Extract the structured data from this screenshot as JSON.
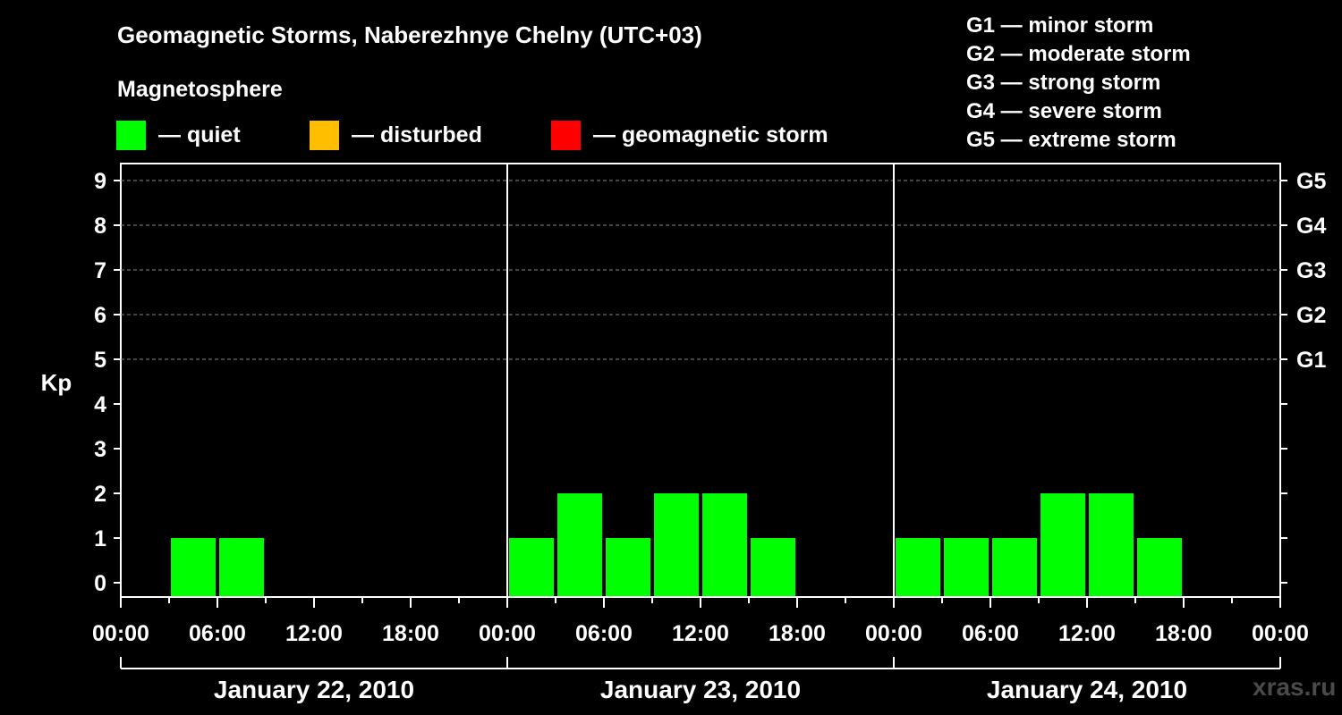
{
  "title": "Geomagnetic Storms, Naberezhnye Chelny (UTC+03)",
  "subtitle": "Magnetosphere",
  "legend": [
    {
      "label": "— quiet",
      "color": "#00ff00"
    },
    {
      "label": "— disturbed",
      "color": "#ffbf00"
    },
    {
      "label": "— geomagnetic storm",
      "color": "#ff0000"
    }
  ],
  "storm_scale": [
    "G1 — minor storm",
    "G2 — moderate storm",
    "G3 — strong storm",
    "G4 — severe storm",
    "G5 — extreme storm"
  ],
  "watermark": "xras.ru",
  "chart_data": {
    "type": "bar",
    "ylabel": "Kp",
    "ylim": [
      0,
      9
    ],
    "yticks": [
      "0",
      "1",
      "2",
      "3",
      "4",
      "5",
      "6",
      "7",
      "8",
      "9"
    ],
    "right_axis_labels": [
      {
        "kp": 5,
        "label": "G1"
      },
      {
        "kp": 6,
        "label": "G2"
      },
      {
        "kp": 7,
        "label": "G3"
      },
      {
        "kp": 8,
        "label": "G4"
      },
      {
        "kp": 9,
        "label": "G5"
      }
    ],
    "grid": "dashed horizontal at Kp 5-9",
    "bar_color": "#00ff00",
    "xtick_labels": [
      "00:00",
      "06:00",
      "12:00",
      "18:00",
      "00:00",
      "06:00",
      "12:00",
      "18:00",
      "00:00",
      "06:00",
      "12:00",
      "18:00",
      "00:00"
    ],
    "days": [
      {
        "label": "January 22, 2010",
        "kp": [
          0,
          1,
          1,
          0,
          0,
          0,
          0,
          0
        ]
      },
      {
        "label": "January 23, 2010",
        "kp": [
          1,
          2,
          1,
          2,
          2,
          1,
          0,
          0
        ]
      },
      {
        "label": "January 24, 2010",
        "kp": [
          1,
          1,
          1,
          2,
          2,
          1,
          0,
          0
        ]
      }
    ]
  }
}
